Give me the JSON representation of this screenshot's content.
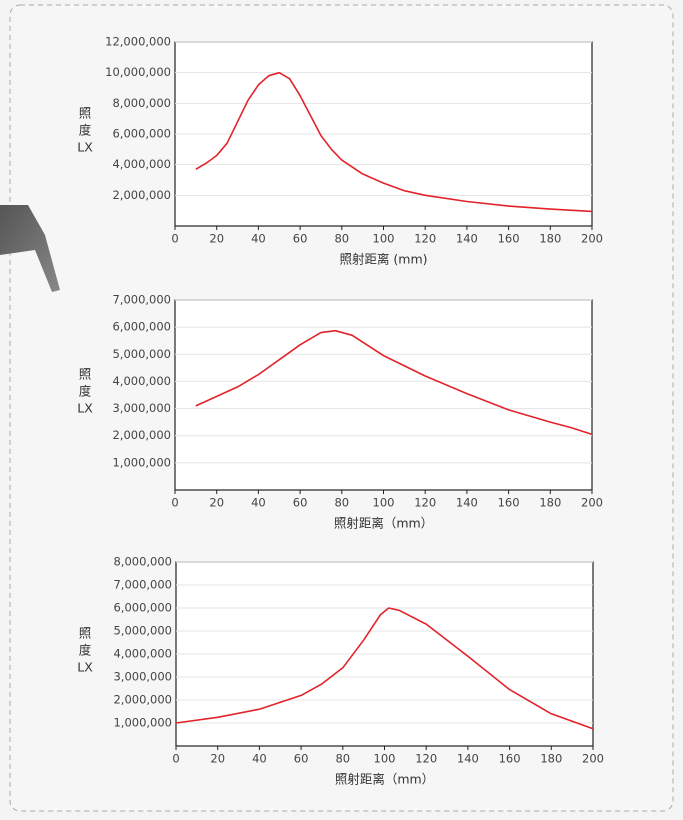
{
  "chart_data": [
    {
      "type": "line",
      "xlabel": "照射距离 (mm)",
      "ylabel": [
        "照",
        "度",
        "LX"
      ],
      "color": "#e2232b",
      "grid": true,
      "x": [
        10,
        15,
        20,
        25,
        30,
        35,
        40,
        45,
        50,
        55,
        60,
        65,
        70,
        75,
        80,
        90,
        100,
        110,
        120,
        140,
        160,
        180,
        200
      ],
      "values": [
        3700000,
        4100000,
        4600000,
        5400000,
        6800000,
        8200000,
        9200000,
        9800000,
        10000000,
        9600000,
        8500000,
        7200000,
        5900000,
        5000000,
        4300000,
        3400000,
        2800000,
        2300000,
        2000000,
        1600000,
        1300000,
        1100000,
        950000
      ],
      "xlim": [
        0,
        200
      ],
      "xticks": [
        0,
        20,
        40,
        60,
        80,
        100,
        120,
        140,
        160,
        180,
        200
      ],
      "ylim": [
        0,
        12000000
      ],
      "yticks": [
        {
          "value": 2000000,
          "label": "2,000,000"
        },
        {
          "value": 4000000,
          "label": "4,000,000"
        },
        {
          "value": 6000000,
          "label": "6,000,000"
        },
        {
          "value": 8000000,
          "label": "8,000,000"
        },
        {
          "value": 10000000,
          "label": "10,000,000"
        },
        {
          "value": 12000000,
          "label": "12,000,000"
        }
      ]
    },
    {
      "type": "line",
      "xlabel": "照射距离（mm）",
      "ylabel": [
        "照",
        "度",
        "LX"
      ],
      "color": "#e2232b",
      "grid": true,
      "x": [
        10,
        20,
        30,
        40,
        50,
        60,
        70,
        77,
        85,
        90,
        100,
        120,
        140,
        160,
        180,
        190,
        200
      ],
      "values": [
        3100000,
        3450000,
        3800000,
        4250000,
        4800000,
        5350000,
        5800000,
        5870000,
        5700000,
        5450000,
        4950000,
        4200000,
        3550000,
        2950000,
        2500000,
        2300000,
        2050000
      ],
      "xlim": [
        0,
        200
      ],
      "xticks": [
        0,
        20,
        40,
        60,
        80,
        100,
        120,
        140,
        160,
        180,
        200
      ],
      "ylim": [
        0,
        7000000
      ],
      "yticks": [
        {
          "value": 1000000,
          "label": "1,000,000"
        },
        {
          "value": 2000000,
          "label": "2,000,000"
        },
        {
          "value": 3000000,
          "label": "3,000,000"
        },
        {
          "value": 4000000,
          "label": "4,000,000"
        },
        {
          "value": 5000000,
          "label": "5,000,000"
        },
        {
          "value": 6000000,
          "label": "6,000,000"
        },
        {
          "value": 7000000,
          "label": "7,000,000"
        }
      ]
    },
    {
      "type": "line",
      "xlabel": "照射距离（mm）",
      "ylabel": [
        "照",
        "度",
        "LX"
      ],
      "color": "#e2232b",
      "grid": true,
      "x": [
        0,
        20,
        40,
        60,
        70,
        80,
        90,
        98,
        102,
        107,
        120,
        140,
        160,
        180,
        200
      ],
      "values": [
        1000000,
        1250000,
        1600000,
        2200000,
        2700000,
        3400000,
        4600000,
        5700000,
        6000000,
        5900000,
        5300000,
        3900000,
        2450000,
        1400000,
        750000
      ],
      "xlim": [
        0,
        200
      ],
      "xticks": [
        0,
        20,
        40,
        60,
        80,
        100,
        120,
        140,
        160,
        180,
        200
      ],
      "ylim": [
        0,
        8000000
      ],
      "yticks": [
        {
          "value": 1000000,
          "label": "1,000,000"
        },
        {
          "value": 2000000,
          "label": "2,000,000"
        },
        {
          "value": 3000000,
          "label": "3,000,000"
        },
        {
          "value": 4000000,
          "label": "4,000,000"
        },
        {
          "value": 5000000,
          "label": "5,000,000"
        },
        {
          "value": 6000000,
          "label": "6,000,000"
        },
        {
          "value": 7000000,
          "label": "7,000,000"
        },
        {
          "value": 8000000,
          "label": "8,000,000"
        }
      ]
    }
  ]
}
